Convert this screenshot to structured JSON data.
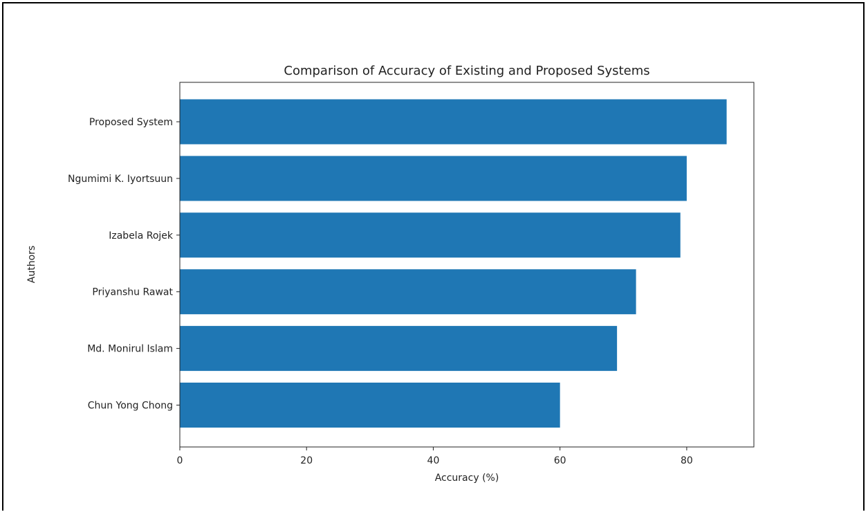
{
  "chart_data": {
    "type": "bar",
    "orientation": "horizontal",
    "title": "Comparison of Accuracy of Existing and Proposed Systems",
    "xlabel": "Accuracy (%)",
    "ylabel": "Authors",
    "categories": [
      "Proposed System",
      "Ngumimi K. Iyortsuun",
      "Izabela Rojek",
      "Priyanshu Rawat",
      "Md. Monirul Islam",
      "Chun Yong Chong"
    ],
    "values": [
      86.3,
      80.0,
      79.0,
      72.0,
      69.0,
      60.0
    ],
    "xlim": [
      0,
      90.6
    ],
    "xticks": [
      0,
      20,
      40,
      60,
      80
    ],
    "grid": false,
    "legend": "none",
    "bar_color": "#1f77b4"
  }
}
